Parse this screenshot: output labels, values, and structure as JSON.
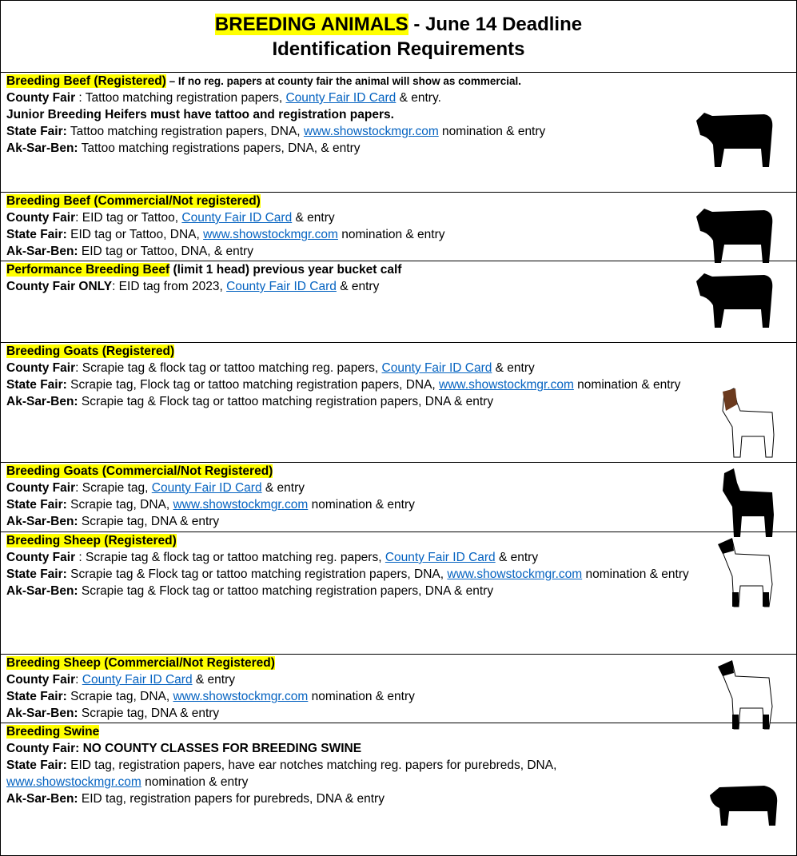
{
  "header": {
    "title": [
      {
        "text": "BREEDING ANIMALS",
        "style": "highlight"
      },
      {
        "text": " - June 14 Deadline"
      }
    ],
    "subtitle": "Identification Requirements"
  },
  "sections": [
    {
      "heading": [
        {
          "text": "Breeding Beef (Registered)",
          "style": "highlight"
        },
        {
          "text": " – If no reg. papers at county fair the animal will show as commercial.",
          "style": "small"
        }
      ],
      "lines": [
        [
          {
            "text": "County Fair",
            "style": "bold"
          },
          {
            "text": " : Tattoo matching registration papers, "
          },
          {
            "text": "County Fair ID Card",
            "style": "link"
          },
          {
            "text": " & entry."
          }
        ],
        [
          {
            "text": "Junior Breeding Heifers must have tattoo and registration papers.",
            "style": "bold"
          }
        ],
        [
          {
            "text": "State Fair:",
            "style": "bold"
          },
          {
            "text": " Tattoo matching registration papers, DNA, "
          },
          {
            "text": "www.showstockmgr.com",
            "style": "link"
          },
          {
            "text": " nomination & entry"
          }
        ],
        [
          {
            "text": "Ak-Sar-Ben:",
            "style": "bold"
          },
          {
            "text": " Tattoo matching registrations papers, DNA, & entry"
          }
        ]
      ]
    },
    {
      "heading": [
        {
          "text": "Breeding Beef",
          "style": "highlight"
        },
        {
          "text": " (Commercial/Not registered)",
          "style": "highlight"
        }
      ],
      "lines": [
        [
          {
            "text": "County Fair",
            "style": "bold"
          },
          {
            "text": ": EID tag or Tattoo, "
          },
          {
            "text": "County Fair ID Card",
            "style": "link"
          },
          {
            "text": " & entry"
          }
        ],
        [
          {
            "text": "State Fair:",
            "style": "bold"
          },
          {
            "text": " EID tag or Tattoo, DNA, "
          },
          {
            "text": "www.showstockmgr.com",
            "style": "link"
          },
          {
            "text": " nomination & entry"
          }
        ],
        [
          {
            "text": "Ak-Sar-Ben:",
            "style": "bold"
          },
          {
            "text": " EID tag or Tattoo, DNA, & entry"
          }
        ]
      ]
    },
    {
      "heading": [
        {
          "text": "Performance Breeding Beef",
          "style": "highlight"
        },
        {
          "text": " (limit 1 head) previous year bucket calf"
        }
      ],
      "lines": [
        [
          {
            "text": "County Fair ONLY",
            "style": "bold"
          },
          {
            "text": ": EID tag from 2023, "
          },
          {
            "text": "County Fair ID Card",
            "style": "link"
          },
          {
            "text": " & entry"
          }
        ]
      ]
    },
    {
      "heading": [
        {
          "text": "Breeding Goats (Registered)",
          "style": "highlight"
        }
      ],
      "lines": [
        [
          {
            "text": "County Fair",
            "style": "bold"
          },
          {
            "text": ": Scrapie tag & flock tag or tattoo matching reg. papers, "
          },
          {
            "text": "County Fair ID Card",
            "style": "link"
          },
          {
            "text": " & entry"
          }
        ],
        [
          {
            "text": "State Fair:",
            "style": "bold"
          },
          {
            "text": " Scrapie tag, Flock tag or tattoo matching registration papers, DNA, "
          },
          {
            "text": "www.showstockmgr.com",
            "style": "link"
          },
          {
            "text": " nomination & entry"
          }
        ],
        [
          {
            "text": "Ak-Sar-Ben:",
            "style": "bold"
          },
          {
            "text": " Scrapie tag & Flock tag or tattoo matching registration papers, DNA & entry"
          }
        ]
      ]
    },
    {
      "heading": [
        {
          "text": "Breeding Goats (Commercial/Not Registered)",
          "style": "highlight"
        }
      ],
      "lines": [
        [
          {
            "text": "County Fair",
            "style": "bold"
          },
          {
            "text": ": Scrapie tag, "
          },
          {
            "text": "County Fair ID Card",
            "style": "link"
          },
          {
            "text": " & entry"
          }
        ],
        [
          {
            "text": "State Fair:",
            "style": "bold"
          },
          {
            "text": " Scrapie tag, DNA, "
          },
          {
            "text": "www.showstockmgr.com",
            "style": "link"
          },
          {
            "text": " nomination & entry"
          }
        ],
        [
          {
            "text": "Ak-Sar-Ben:",
            "style": "bold"
          },
          {
            "text": " Scrapie tag, DNA & entry"
          }
        ]
      ]
    },
    {
      "heading": [
        {
          "text": "Breeding Sheep (Registered)",
          "style": "highlight"
        }
      ],
      "lines": [
        [
          {
            "text": "County Fair",
            "style": "bold"
          },
          {
            "text": " : Scrapie tag & flock tag or tattoo matching reg. papers, "
          },
          {
            "text": "County Fair ID Card",
            "style": "link"
          },
          {
            "text": " & entry"
          }
        ],
        [
          {
            "text": "State Fair:",
            "style": "bold"
          },
          {
            "text": " Scrapie tag & Flock tag or tattoo matching registration papers, DNA, "
          },
          {
            "text": "www.showstockmgr.com",
            "style": "link"
          },
          {
            "text": " nomination & entry"
          }
        ],
        [
          {
            "text": "Ak-Sar-Ben:",
            "style": "bold"
          },
          {
            "text": " Scrapie tag & Flock tag or tattoo matching registration papers, DNA & entry"
          }
        ]
      ]
    },
    {
      "heading": [
        {
          "text": "Breeding Sheep (Commercial/Not Registered)",
          "style": "highlight"
        }
      ],
      "lines": [
        [
          {
            "text": "County Fair",
            "style": "bold"
          },
          {
            "text": ": "
          },
          {
            "text": "County Fair ID Card",
            "style": "link"
          },
          {
            "text": " & entry"
          }
        ],
        [
          {
            "text": "State Fair:",
            "style": "bold"
          },
          {
            "text": " Scrapie tag, DNA, "
          },
          {
            "text": "www.showstockmgr.com",
            "style": "link"
          },
          {
            "text": " nomination & entry"
          }
        ],
        [
          {
            "text": "Ak-Sar-Ben:",
            "style": "bold"
          },
          {
            "text": " Scrapie tag, DNA & entry"
          }
        ]
      ]
    },
    {
      "heading": [
        {
          "text": "Breeding Swine",
          "style": "highlight"
        }
      ],
      "lines": [
        [
          {
            "text": "County Fair: NO COUNTY CLASSES FOR BREEDING SWINE",
            "style": "bold"
          }
        ],
        [
          {
            "text": "State Fair:",
            "style": "bold"
          },
          {
            "text": " EID tag, registration papers, have ear notches matching reg. papers for purebreds, DNA, "
          },
          {
            "text": "www.showstockmgr.com",
            "style": "link"
          },
          {
            "text": " nomination & entry"
          }
        ],
        [
          {
            "text": "Ak-Sar-Ben:",
            "style": "bold"
          },
          {
            "text": " EID tag, registration papers for purebreds, DNA & entry"
          }
        ]
      ]
    }
  ]
}
